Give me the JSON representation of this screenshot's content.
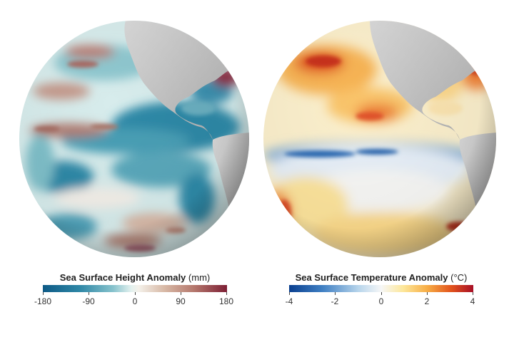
{
  "maps": [
    {
      "legend": {
        "title": "Sea Surface Height Anomaly",
        "unit": "(mm)",
        "ticks": [
          "-180",
          "-90",
          "0",
          "90",
          "180"
        ],
        "range": [
          -180,
          180
        ],
        "colors": [
          "#0e5a86",
          "#2e87a6",
          "#86c2cc",
          "#e3f1ef",
          "#f4f1ea",
          "#d8b9a6",
          "#b5786d",
          "#7d1f35"
        ]
      }
    },
    {
      "legend": {
        "title": "Sea Surface Temperature Anomaly",
        "unit": "(°C)",
        "ticks": [
          "-4",
          "-2",
          "0",
          "2",
          "4"
        ],
        "range": [
          -4,
          4
        ],
        "colors": [
          "#0a3f8f",
          "#3f7fc3",
          "#b9d6ec",
          "#f6f7f7",
          "#fde79a",
          "#f7ad45",
          "#e2531c",
          "#a70f26"
        ]
      }
    }
  ]
}
